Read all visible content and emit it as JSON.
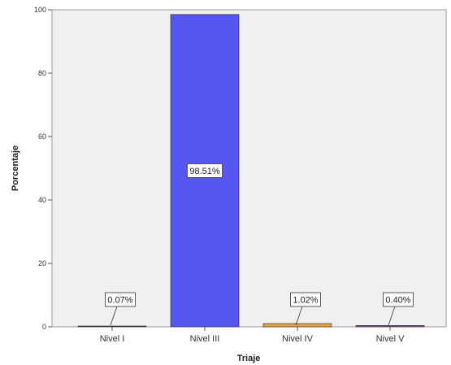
{
  "chart_data": {
    "type": "bar",
    "categories": [
      "Nivel I",
      "Nivel III",
      "Nivel IV",
      "Nivel V"
    ],
    "values": [
      0.07,
      98.51,
      1.02,
      0.4
    ],
    "data_labels": [
      "0.07%",
      "98.51%",
      "1.02%",
      "0.40%"
    ],
    "bar_colors": [
      "#3a3a6a",
      "#5555f0",
      "#e8a040",
      "#7a4a9a"
    ],
    "xlabel": "Triaje",
    "ylabel": "Porcentaje",
    "ylim": [
      0,
      100
    ],
    "yticks": [
      0,
      20,
      40,
      60,
      80,
      100
    ],
    "ytick_labels": [
      "0",
      "20",
      "40",
      "60",
      "80",
      "100"
    ],
    "grid": false,
    "legend": false,
    "plot_background": "#f0f0f0"
  }
}
